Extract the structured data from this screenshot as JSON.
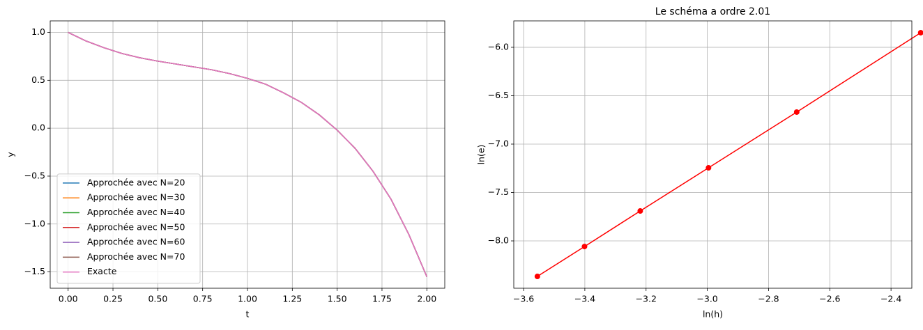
{
  "chart_data": [
    {
      "type": "line",
      "xlabel": "t",
      "ylabel": "y",
      "x": [
        0,
        0.1,
        0.2,
        0.3,
        0.4,
        0.5,
        0.6,
        0.7,
        0.8,
        0.9,
        1.0,
        1.1,
        1.2,
        1.3,
        1.4,
        1.5,
        1.6,
        1.7,
        1.8,
        1.9,
        2.0
      ],
      "series": [
        {
          "name": "Approchée avec N=20",
          "color": "#1f77b4",
          "values": [
            1.0,
            0.91,
            0.84,
            0.78,
            0.735,
            0.7,
            0.67,
            0.64,
            0.61,
            0.57,
            0.52,
            0.46,
            0.37,
            0.27,
            0.14,
            -0.02,
            -0.21,
            -0.45,
            -0.74,
            -1.11,
            -1.55
          ]
        },
        {
          "name": "Approchée avec N=30",
          "color": "#ff7f0e",
          "values": [
            1.0,
            0.91,
            0.84,
            0.78,
            0.735,
            0.7,
            0.67,
            0.64,
            0.61,
            0.57,
            0.52,
            0.46,
            0.37,
            0.27,
            0.14,
            -0.02,
            -0.21,
            -0.45,
            -0.74,
            -1.11,
            -1.55
          ]
        },
        {
          "name": "Approchée avec N=40",
          "color": "#2ca02c",
          "values": [
            1.0,
            0.91,
            0.84,
            0.78,
            0.735,
            0.7,
            0.67,
            0.64,
            0.61,
            0.57,
            0.52,
            0.46,
            0.37,
            0.27,
            0.14,
            -0.02,
            -0.21,
            -0.45,
            -0.74,
            -1.11,
            -1.55
          ]
        },
        {
          "name": "Approchée avec N=50",
          "color": "#d62728",
          "values": [
            1.0,
            0.91,
            0.84,
            0.78,
            0.735,
            0.7,
            0.67,
            0.64,
            0.61,
            0.57,
            0.52,
            0.46,
            0.37,
            0.27,
            0.14,
            -0.02,
            -0.21,
            -0.45,
            -0.74,
            -1.11,
            -1.55
          ]
        },
        {
          "name": "Approchée avec N=60",
          "color": "#9467bd",
          "values": [
            1.0,
            0.91,
            0.84,
            0.78,
            0.735,
            0.7,
            0.67,
            0.64,
            0.61,
            0.57,
            0.52,
            0.46,
            0.37,
            0.27,
            0.14,
            -0.02,
            -0.21,
            -0.45,
            -0.74,
            -1.11,
            -1.55
          ]
        },
        {
          "name": "Approchée avec N=70",
          "color": "#8c564b",
          "values": [
            1.0,
            0.91,
            0.84,
            0.78,
            0.735,
            0.7,
            0.67,
            0.64,
            0.61,
            0.57,
            0.52,
            0.46,
            0.37,
            0.27,
            0.14,
            -0.02,
            -0.21,
            -0.45,
            -0.74,
            -1.11,
            -1.55
          ]
        },
        {
          "name": "Exacte",
          "color": "#e377c2",
          "values": [
            1.0,
            0.91,
            0.84,
            0.78,
            0.735,
            0.7,
            0.67,
            0.64,
            0.61,
            0.57,
            0.52,
            0.46,
            0.37,
            0.27,
            0.14,
            -0.02,
            -0.21,
            -0.45,
            -0.74,
            -1.11,
            -1.55
          ]
        }
      ],
      "xlim": [
        -0.1,
        2.1
      ],
      "ylim": [
        -1.67,
        1.12
      ],
      "xticks": [
        {
          "value": 0,
          "label": "0.00"
        },
        {
          "value": 0.25,
          "label": "0.25"
        },
        {
          "value": 0.5,
          "label": "0.50"
        },
        {
          "value": 0.75,
          "label": "0.75"
        },
        {
          "value": 1.0,
          "label": "1.00"
        },
        {
          "value": 1.25,
          "label": "1.25"
        },
        {
          "value": 1.5,
          "label": "1.50"
        },
        {
          "value": 1.75,
          "label": "1.75"
        },
        {
          "value": 2.0,
          "label": "2.00"
        }
      ],
      "yticks": [
        {
          "value": -1.5,
          "label": "−1.5"
        },
        {
          "value": -1.0,
          "label": "−1.0"
        },
        {
          "value": -0.5,
          "label": "−0.5"
        },
        {
          "value": 0,
          "label": "0.0"
        },
        {
          "value": 0.5,
          "label": "0.5"
        },
        {
          "value": 1.0,
          "label": "1.0"
        }
      ],
      "grid": true,
      "legend": "lower left"
    },
    {
      "type": "line",
      "title": "Le schéma a ordre 2.01",
      "xlabel": "ln(h)",
      "ylabel": "ln(e)",
      "x": [
        -3.555,
        -3.401,
        -3.219,
        -2.996,
        -2.708,
        -2.303
      ],
      "series": [
        {
          "color": "#ff0000",
          "marker": "o",
          "values": [
            -8.367,
            -8.058,
            -7.691,
            -7.245,
            -6.669,
            -5.849
          ]
        }
      ],
      "xlim": [
        -3.632,
        -2.332
      ],
      "ylim": [
        -8.489,
        -5.727
      ],
      "xticks": [
        {
          "value": -3.6,
          "label": "−3.6"
        },
        {
          "value": -3.4,
          "label": "−3.4"
        },
        {
          "value": -3.2,
          "label": "−3.2"
        },
        {
          "value": -3.0,
          "label": "−3.0"
        },
        {
          "value": -2.8,
          "label": "−2.8"
        },
        {
          "value": -2.6,
          "label": "−2.6"
        },
        {
          "value": -2.4,
          "label": "−2.4"
        }
      ],
      "yticks": [
        {
          "value": -8.0,
          "label": "−8.0"
        },
        {
          "value": -7.5,
          "label": "−7.5"
        },
        {
          "value": -7.0,
          "label": "−7.0"
        },
        {
          "value": -6.5,
          "label": "−6.5"
        },
        {
          "value": -6.0,
          "label": "−6.0"
        }
      ],
      "grid": true
    }
  ]
}
